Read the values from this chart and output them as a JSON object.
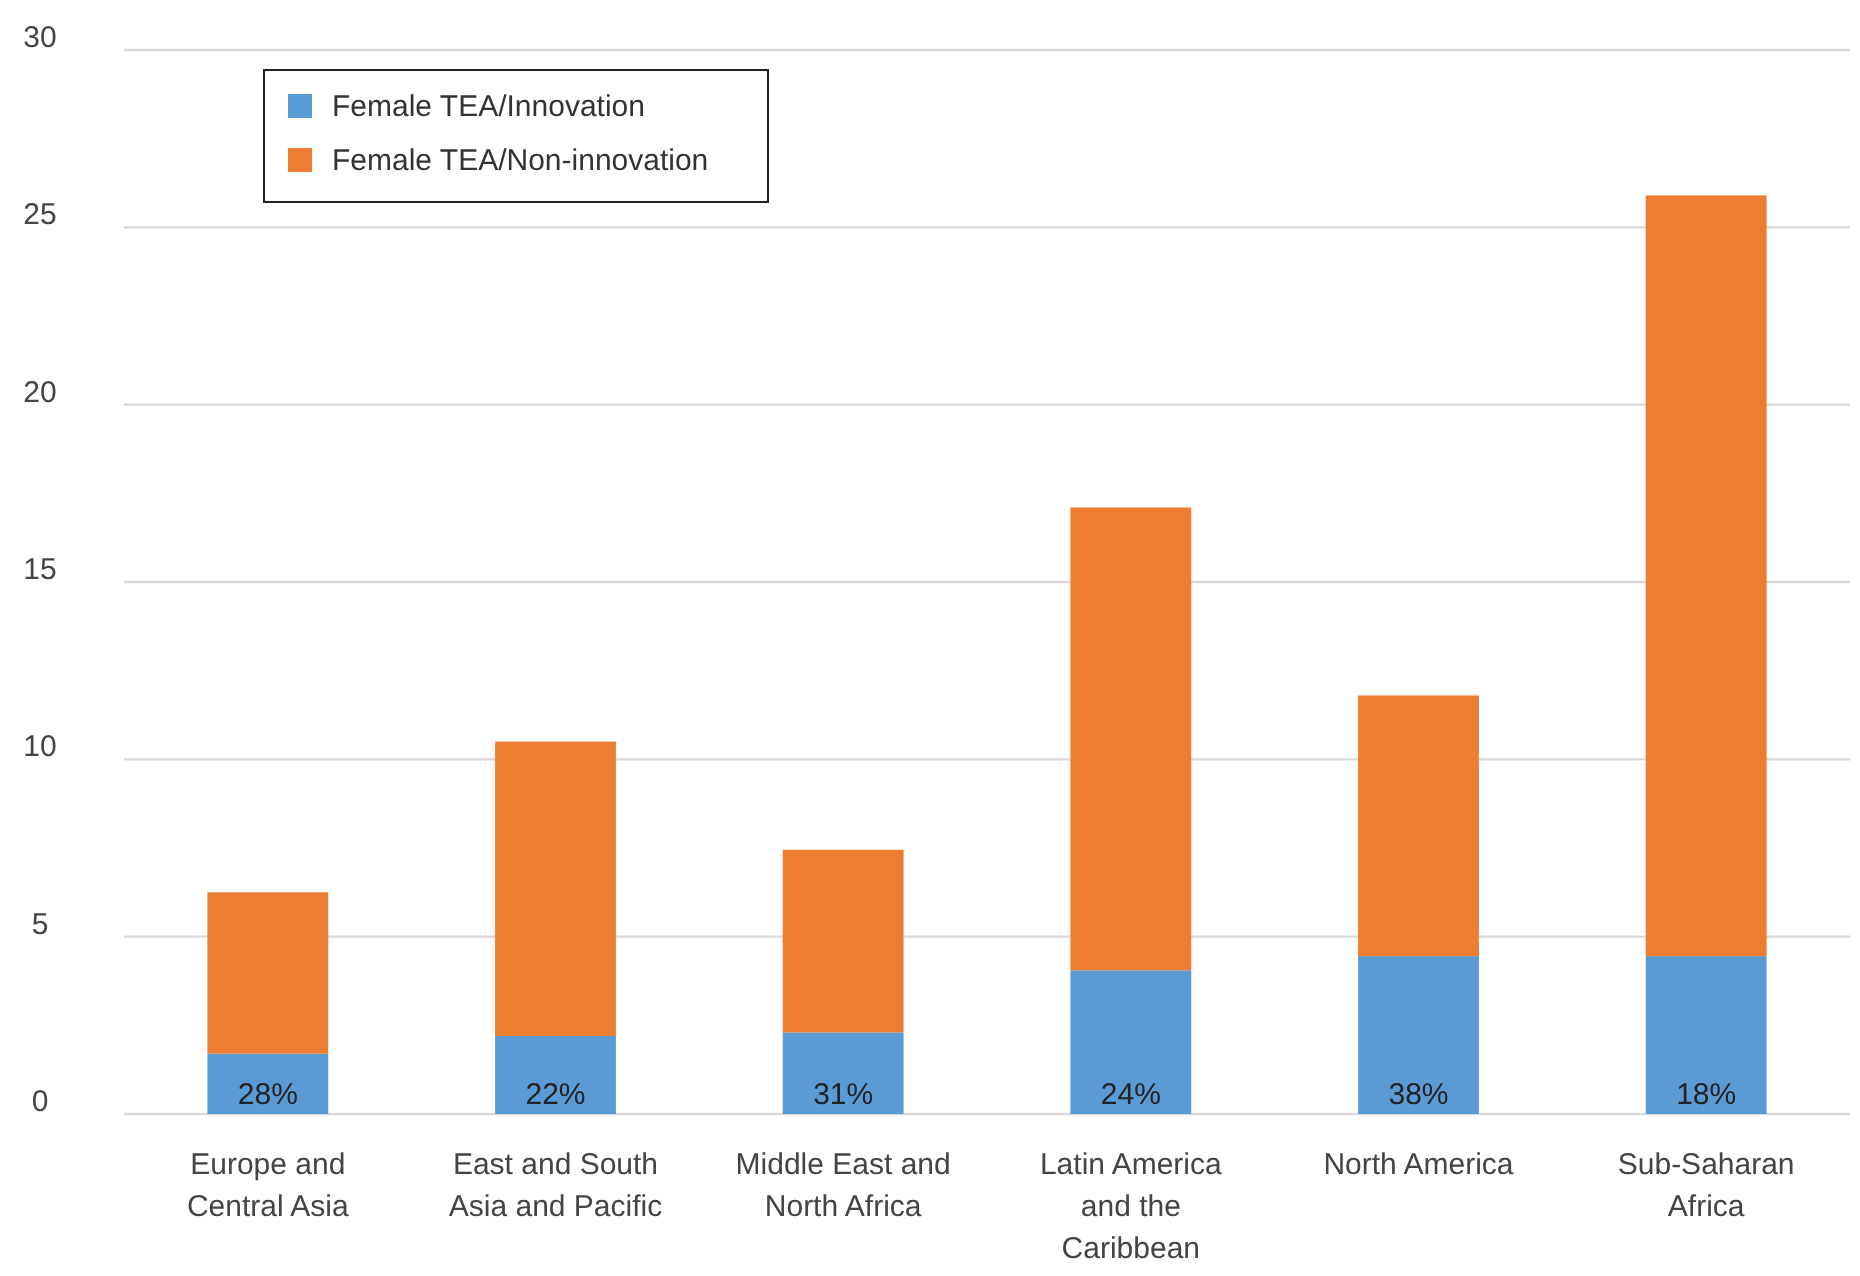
{
  "chart_data": {
    "type": "bar",
    "stacked": true,
    "categories": [
      "Europe and Central Asia",
      "East and South Asia and Pacific",
      "Middle East and North Africa",
      "Latin America and the Caribbean",
      "North America",
      "Sub-Saharan Africa"
    ],
    "series": [
      {
        "name": "Female TEA/Innovation",
        "color": "#5b9bd5",
        "values": [
          1.7,
          2.2,
          2.3,
          4.05,
          4.45,
          4.45
        ]
      },
      {
        "name": "Female TEA/Non-innovation",
        "color": "#ed7d31",
        "values": [
          4.55,
          8.3,
          5.15,
          13.05,
          7.35,
          21.45
        ]
      }
    ],
    "annotations": [
      "28%",
      "22%",
      "31%",
      "24%",
      "38%",
      "18%"
    ],
    "ylim": [
      0,
      30
    ],
    "yticks": [
      0,
      5,
      10,
      15,
      20,
      25,
      30
    ],
    "grid": "y",
    "legend": "top left"
  }
}
